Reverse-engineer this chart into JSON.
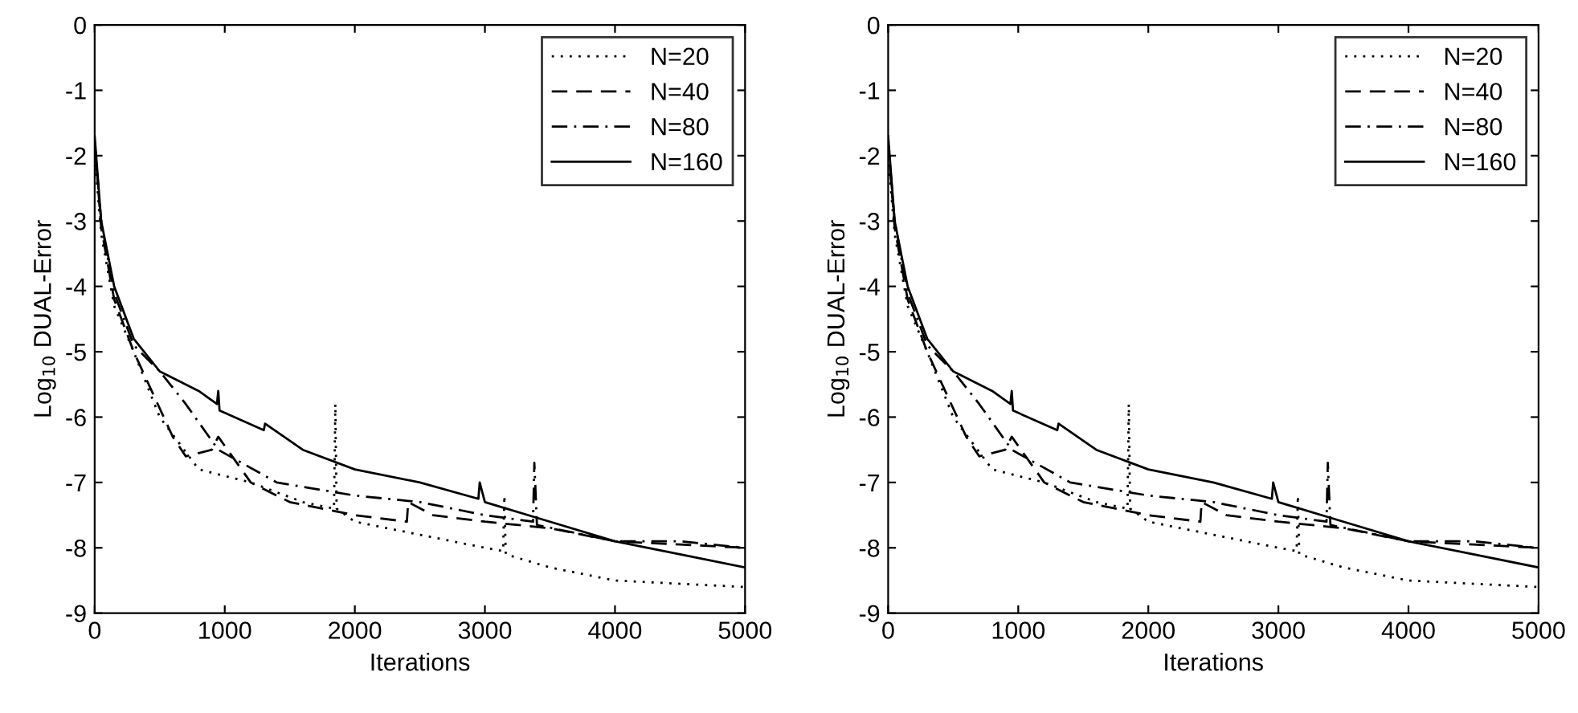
{
  "chart_data": [
    {
      "type": "line",
      "xlabel": "Iterations",
      "ylabel": "Log$_{10}$ DUAL-Error",
      "xlim": [
        0,
        5000
      ],
      "ylim": [
        -9,
        0
      ],
      "xticks": [
        0,
        1000,
        2000,
        3000,
        4000,
        5000
      ],
      "yticks": [
        -9,
        -8,
        -7,
        -6,
        -5,
        -4,
        -3,
        -2,
        -1,
        0
      ],
      "legend": "top right",
      "grid": false,
      "series": [
        {
          "name": "N=20",
          "color": "#000000",
          "line_style": "dotted",
          "x": [
            0,
            50,
            150,
            300,
            500,
            800,
            1200,
            1600,
            1840,
            1850,
            1860,
            2000,
            2500,
            3000,
            3140,
            3150,
            3160,
            3500,
            4000,
            4500,
            5000
          ],
          "values": [
            -2.0,
            -3.2,
            -4.3,
            -5.0,
            -6.0,
            -6.8,
            -7.0,
            -7.3,
            -7.4,
            -5.8,
            -7.4,
            -7.6,
            -7.8,
            -8.0,
            -8.05,
            -7.2,
            -8.1,
            -8.3,
            -8.5,
            -8.55,
            -8.6
          ]
        },
        {
          "name": "N=40",
          "color": "#000000",
          "line_style": "dashed",
          "x": [
            0,
            50,
            150,
            300,
            600,
            700,
            900,
            950,
            1200,
            1500,
            2000,
            2400,
            2410,
            2600,
            3000,
            3500,
            4000,
            4500,
            5000
          ],
          "values": [
            -1.8,
            -3.1,
            -4.2,
            -5.0,
            -6.3,
            -6.6,
            -6.5,
            -6.3,
            -7.0,
            -7.3,
            -7.5,
            -7.6,
            -7.3,
            -7.5,
            -7.6,
            -7.7,
            -7.9,
            -7.95,
            -8.0
          ]
        },
        {
          "name": "N=80",
          "color": "#000000",
          "line_style": "dashdot",
          "x": [
            0,
            50,
            150,
            300,
            500,
            700,
            950,
            1400,
            2000,
            2500,
            3000,
            3370,
            3380,
            3400,
            4000,
            4500,
            5000
          ],
          "values": [
            -1.8,
            -3.0,
            -4.1,
            -4.9,
            -5.3,
            -5.8,
            -6.5,
            -7.0,
            -7.2,
            -7.3,
            -7.5,
            -7.6,
            -6.7,
            -7.65,
            -7.9,
            -7.9,
            -8.0
          ]
        },
        {
          "name": "N=160",
          "color": "#000000",
          "line_style": "solid",
          "x": [
            0,
            50,
            150,
            300,
            500,
            800,
            940,
            950,
            960,
            1300,
            1310,
            1600,
            2000,
            2500,
            2950,
            2960,
            3000,
            3500,
            4000,
            4500,
            5000
          ],
          "values": [
            -1.7,
            -3.0,
            -4.0,
            -4.8,
            -5.3,
            -5.6,
            -5.8,
            -5.6,
            -5.9,
            -6.2,
            -6.1,
            -6.5,
            -6.8,
            -7.0,
            -7.25,
            -7.0,
            -7.3,
            -7.6,
            -7.9,
            -8.1,
            -8.3
          ]
        }
      ]
    },
    {
      "type": "line",
      "xlabel": "Iterations",
      "ylabel": "Log$_{10}$ DUAL-Error",
      "xlim": [
        0,
        5000
      ],
      "ylim": [
        -9,
        0
      ],
      "xticks": [
        0,
        1000,
        2000,
        3000,
        4000,
        5000
      ],
      "yticks": [
        -9,
        -8,
        -7,
        -6,
        -5,
        -4,
        -3,
        -2,
        -1,
        0
      ],
      "legend": "top right",
      "grid": false,
      "series": [
        {
          "name": "N=20",
          "color": "#000000",
          "line_style": "dotted",
          "x": [
            0,
            50,
            150,
            300,
            500,
            800,
            1200,
            1600,
            1840,
            1850,
            1860,
            2000,
            2500,
            3000,
            3140,
            3150,
            3160,
            3500,
            4000,
            4500,
            5000
          ],
          "values": [
            -2.0,
            -3.2,
            -4.3,
            -5.0,
            -6.0,
            -6.8,
            -7.0,
            -7.3,
            -7.4,
            -5.8,
            -7.4,
            -7.6,
            -7.8,
            -8.0,
            -8.05,
            -7.2,
            -8.1,
            -8.3,
            -8.5,
            -8.55,
            -8.6
          ]
        },
        {
          "name": "N=40",
          "color": "#000000",
          "line_style": "dashed",
          "x": [
            0,
            50,
            150,
            300,
            600,
            700,
            900,
            950,
            1200,
            1500,
            2000,
            2400,
            2410,
            2600,
            3000,
            3500,
            4000,
            4500,
            5000
          ],
          "values": [
            -1.8,
            -3.1,
            -4.2,
            -5.0,
            -6.3,
            -6.6,
            -6.5,
            -6.3,
            -7.0,
            -7.3,
            -7.5,
            -7.6,
            -7.3,
            -7.5,
            -7.6,
            -7.7,
            -7.9,
            -7.95,
            -8.0
          ]
        },
        {
          "name": "N=80",
          "color": "#000000",
          "line_style": "dashdot",
          "x": [
            0,
            50,
            150,
            300,
            500,
            700,
            950,
            1400,
            2000,
            2500,
            3000,
            3370,
            3380,
            3400,
            4000,
            4500,
            5000
          ],
          "values": [
            -1.8,
            -3.0,
            -4.1,
            -4.9,
            -5.3,
            -5.8,
            -6.5,
            -7.0,
            -7.2,
            -7.3,
            -7.5,
            -7.6,
            -6.7,
            -7.65,
            -7.9,
            -7.9,
            -8.0
          ]
        },
        {
          "name": "N=160",
          "color": "#000000",
          "line_style": "solid",
          "x": [
            0,
            50,
            150,
            300,
            500,
            800,
            940,
            950,
            960,
            1300,
            1310,
            1600,
            2000,
            2500,
            2950,
            2960,
            3000,
            3500,
            4000,
            4500,
            5000
          ],
          "values": [
            -1.7,
            -3.0,
            -4.0,
            -4.8,
            -5.3,
            -5.6,
            -5.8,
            -5.6,
            -5.9,
            -6.2,
            -6.1,
            -6.5,
            -6.8,
            -7.0,
            -7.25,
            -7.0,
            -7.3,
            -7.6,
            -7.9,
            -8.1,
            -8.3
          ]
        }
      ]
    }
  ]
}
